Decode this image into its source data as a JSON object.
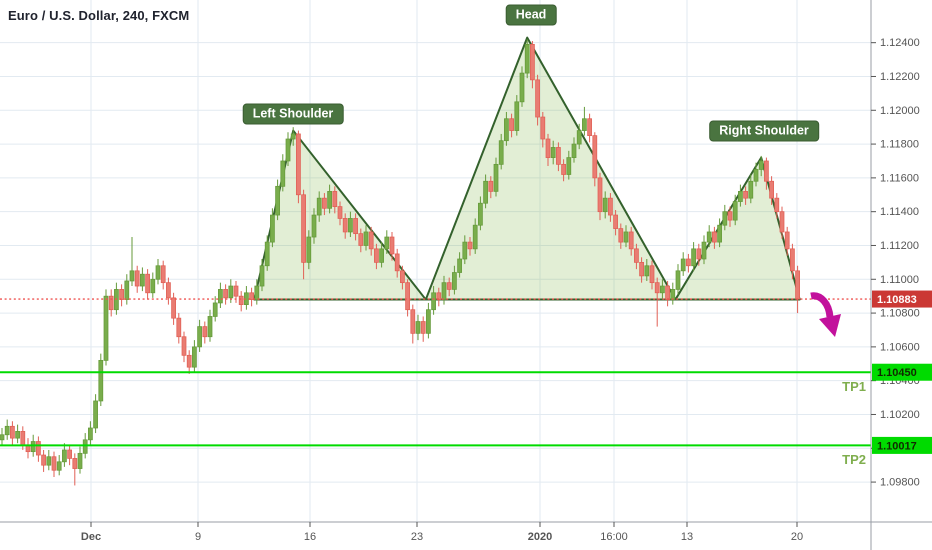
{
  "header": {
    "title": "Euro / U.S. Dollar, 240, FXCM"
  },
  "colors": {
    "background": "#ffffff",
    "grid": "#e2eaf1",
    "axis_border": "#999da6",
    "axis_text": "#555555",
    "candle_up": "#79ad4c",
    "candle_up_border": "#659a3a",
    "candle_down": "#e97c72",
    "candle_down_border": "#e15f55",
    "pattern_stroke": "#33612c",
    "pattern_fill": "rgba(124,179,66,0.22)",
    "pattern_label_bg": "#4a7440",
    "price_line": "#ef5350",
    "price_badge_bg": "#cb3834",
    "price_badge_text": "#ffffff",
    "tp_line": "#00db00",
    "tp_badge_bg": "#00db00",
    "tp_badge_text": "#102a00",
    "tp_label_text": "#7fae4e",
    "arrow": "#c2119c"
  },
  "chart_data": {
    "type": "candlestick",
    "symbol": "Euro / U.S. Dollar",
    "interval": "240",
    "exchange": "FXCM",
    "y_ticks": [
      {
        "v": 1.124,
        "label": "1.12400"
      },
      {
        "v": 1.122,
        "label": "1.12200"
      },
      {
        "v": 1.12,
        "label": "1.12000"
      },
      {
        "v": 1.118,
        "label": "1.11800"
      },
      {
        "v": 1.116,
        "label": "1.11600"
      },
      {
        "v": 1.114,
        "label": "1.11400"
      },
      {
        "v": 1.112,
        "label": "1.11200"
      },
      {
        "v": 1.11,
        "label": "1.11000"
      },
      {
        "v": 1.108,
        "label": "1.10800"
      },
      {
        "v": 1.106,
        "label": "1.10600"
      },
      {
        "v": 1.104,
        "label": "1.10400"
      },
      {
        "v": 1.102,
        "label": "1.10200"
      },
      {
        "v": 1.1,
        "label": "1.10000"
      },
      {
        "v": 1.098,
        "label": "1.09800"
      }
    ],
    "x_ticks": [
      {
        "label": "Dec",
        "x": 91,
        "bold": true
      },
      {
        "label": "9",
        "x": 198,
        "bold": false
      },
      {
        "label": "16",
        "x": 310,
        "bold": false
      },
      {
        "label": "23",
        "x": 417,
        "bold": false
      },
      {
        "label": "2020",
        "x": 540,
        "bold": true
      },
      {
        "label": "16:00",
        "x": 614,
        "bold": false
      },
      {
        "label": "13",
        "x": 687,
        "bold": false
      },
      {
        "label": "20",
        "x": 797,
        "bold": false
      }
    ],
    "price_line": {
      "value": 1.10883,
      "label": "1.10883"
    },
    "tp_lines": [
      {
        "name": "TP1",
        "value": 1.1045,
        "label": "1.10450"
      },
      {
        "name": "TP2",
        "value": 1.10017,
        "label": "1.10017"
      }
    ],
    "pattern": {
      "name": "head-and-shoulders",
      "neckline": 1.1088,
      "labels": [
        {
          "text": "Left Shoulder",
          "x": 293,
          "y": 114
        },
        {
          "text": "Head",
          "x": 531,
          "y": 15
        },
        {
          "text": "Right Shoulder",
          "x": 764,
          "y": 131
        }
      ],
      "shapes": [
        {
          "name": "left-shoulder",
          "from_i": 48.5,
          "peak_i": 56,
          "peak_p": 1.1188,
          "to_i": 81.5
        },
        {
          "name": "head",
          "from_i": 81.5,
          "peak_i": 101,
          "peak_p": 1.1243,
          "to_i": 129.5
        },
        {
          "name": "right-shoulder",
          "from_i": 129.5,
          "peak_i": 146,
          "peak_p": 1.1172,
          "to_i": 153.4
        }
      ]
    },
    "arrow_annotation": {
      "from_x": 811,
      "from_y": 296,
      "tip_x": 835,
      "tip_y": 337
    },
    "candles": [
      [
        1.1005,
        1.1012,
        1.1002,
        1.1008
      ],
      [
        1.1008,
        1.1017,
        1.1005,
        1.1013
      ],
      [
        1.1013,
        1.1016,
        1.1002,
        1.1006
      ],
      [
        1.1006,
        1.1014,
        1.1003,
        1.101
      ],
      [
        1.101,
        1.1013,
        1.0999,
        1.1002
      ],
      [
        1.1002,
        1.1006,
        1.0994,
        1.0998
      ],
      [
        1.0998,
        1.1008,
        1.0995,
        1.1004
      ],
      [
        1.1004,
        1.1007,
        1.0992,
        1.0996
      ],
      [
        1.0996,
        1.0999,
        1.0986,
        1.099
      ],
      [
        1.099,
        1.0999,
        1.0987,
        1.0995
      ],
      [
        1.0995,
        1.0998,
        1.0983,
        1.0987
      ],
      [
        1.0987,
        1.0996,
        1.0984,
        1.0992
      ],
      [
        1.0992,
        1.1003,
        1.0989,
        1.0999
      ],
      [
        1.0999,
        1.1002,
        1.099,
        1.0994
      ],
      [
        1.0994,
        1.0997,
        1.0978,
        1.0988
      ],
      [
        1.0988,
        1.1001,
        1.0985,
        1.0997
      ],
      [
        1.0997,
        1.1009,
        1.0994,
        1.1005
      ],
      [
        1.1005,
        1.1016,
        1.1002,
        1.1012
      ],
      [
        1.1012,
        1.1032,
        1.1009,
        1.1028
      ],
      [
        1.1028,
        1.1056,
        1.1025,
        1.1052
      ],
      [
        1.1052,
        1.1094,
        1.1049,
        1.109
      ],
      [
        1.109,
        1.1094,
        1.1078,
        1.1082
      ],
      [
        1.1082,
        1.1098,
        1.1079,
        1.1094
      ],
      [
        1.1094,
        1.1097,
        1.1084,
        1.1088
      ],
      [
        1.1088,
        1.1103,
        1.1085,
        1.1099
      ],
      [
        1.1099,
        1.1125,
        1.1096,
        1.1105
      ],
      [
        1.1105,
        1.1108,
        1.1092,
        1.1096
      ],
      [
        1.1096,
        1.1107,
        1.1093,
        1.1103
      ],
      [
        1.1103,
        1.1106,
        1.1088,
        1.1092
      ],
      [
        1.1092,
        1.1104,
        1.1089,
        1.11
      ],
      [
        1.11,
        1.1112,
        1.1097,
        1.1108
      ],
      [
        1.1108,
        1.1111,
        1.1094,
        1.1098
      ],
      [
        1.1098,
        1.1101,
        1.1085,
        1.1089
      ],
      [
        1.1089,
        1.1092,
        1.1073,
        1.1077
      ],
      [
        1.1077,
        1.108,
        1.1062,
        1.1066
      ],
      [
        1.1066,
        1.1069,
        1.1051,
        1.1055
      ],
      [
        1.1055,
        1.1058,
        1.1044,
        1.1048
      ],
      [
        1.1048,
        1.1064,
        1.1045,
        1.106
      ],
      [
        1.106,
        1.1076,
        1.1057,
        1.1072
      ],
      [
        1.1072,
        1.1075,
        1.1062,
        1.1066
      ],
      [
        1.1066,
        1.1082,
        1.1063,
        1.1078
      ],
      [
        1.1078,
        1.109,
        1.1075,
        1.1086
      ],
      [
        1.1086,
        1.1098,
        1.1083,
        1.1094
      ],
      [
        1.1094,
        1.1097,
        1.1085,
        1.1089
      ],
      [
        1.1089,
        1.11,
        1.1086,
        1.1096
      ],
      [
        1.1096,
        1.1099,
        1.1086,
        1.109
      ],
      [
        1.109,
        1.1093,
        1.1081,
        1.1085
      ],
      [
        1.1085,
        1.1096,
        1.1082,
        1.1092
      ],
      [
        1.1092,
        1.1095,
        1.1084,
        1.1088
      ],
      [
        1.1088,
        1.11,
        1.1085,
        1.1096
      ],
      [
        1.1096,
        1.1112,
        1.1093,
        1.1108
      ],
      [
        1.1108,
        1.1126,
        1.1105,
        1.1122
      ],
      [
        1.1122,
        1.1142,
        1.1119,
        1.1138
      ],
      [
        1.1138,
        1.1159,
        1.1135,
        1.1155
      ],
      [
        1.1155,
        1.1174,
        1.1152,
        1.117
      ],
      [
        1.117,
        1.1187,
        1.1167,
        1.1183
      ],
      [
        1.1183,
        1.119,
        1.1179,
        1.1186
      ],
      [
        1.1186,
        1.1188,
        1.1145,
        1.115
      ],
      [
        1.115,
        1.1153,
        1.11,
        1.111
      ],
      [
        1.111,
        1.1129,
        1.1106,
        1.1125
      ],
      [
        1.1125,
        1.1142,
        1.1121,
        1.1138
      ],
      [
        1.1138,
        1.1152,
        1.1134,
        1.1148
      ],
      [
        1.1148,
        1.1151,
        1.1138,
        1.1142
      ],
      [
        1.1142,
        1.1156,
        1.1139,
        1.1152
      ],
      [
        1.1152,
        1.1155,
        1.1139,
        1.1143
      ],
      [
        1.1143,
        1.1146,
        1.1132,
        1.1136
      ],
      [
        1.1136,
        1.1139,
        1.1124,
        1.1128
      ],
      [
        1.1128,
        1.114,
        1.1125,
        1.1136
      ],
      [
        1.1136,
        1.1139,
        1.1123,
        1.1127
      ],
      [
        1.1127,
        1.113,
        1.1116,
        1.112
      ],
      [
        1.112,
        1.1132,
        1.1117,
        1.1128
      ],
      [
        1.1128,
        1.1131,
        1.1114,
        1.1118
      ],
      [
        1.1118,
        1.1121,
        1.1106,
        1.111
      ],
      [
        1.111,
        1.1122,
        1.1107,
        1.1118
      ],
      [
        1.1118,
        1.1129,
        1.1115,
        1.1125
      ],
      [
        1.1125,
        1.1128,
        1.1111,
        1.1115
      ],
      [
        1.1115,
        1.1118,
        1.1101,
        1.1105
      ],
      [
        1.1105,
        1.1108,
        1.1094,
        1.1098
      ],
      [
        1.1098,
        1.11,
        1.1078,
        1.1082
      ],
      [
        1.1082,
        1.1085,
        1.1062,
        1.1068
      ],
      [
        1.1068,
        1.1079,
        1.1064,
        1.1075
      ],
      [
        1.1075,
        1.1078,
        1.1063,
        1.1068
      ],
      [
        1.1068,
        1.1086,
        1.1065,
        1.1082
      ],
      [
        1.1082,
        1.1096,
        1.1079,
        1.1092
      ],
      [
        1.1092,
        1.1095,
        1.1084,
        1.1088
      ],
      [
        1.1088,
        1.1102,
        1.1085,
        1.1098
      ],
      [
        1.1098,
        1.1101,
        1.109,
        1.1094
      ],
      [
        1.1094,
        1.1108,
        1.1091,
        1.1104
      ],
      [
        1.1104,
        1.1116,
        1.1101,
        1.1112
      ],
      [
        1.1112,
        1.1126,
        1.1109,
        1.1122
      ],
      [
        1.1122,
        1.1125,
        1.1114,
        1.1118
      ],
      [
        1.1118,
        1.1136,
        1.1115,
        1.1132
      ],
      [
        1.1132,
        1.1149,
        1.1129,
        1.1145
      ],
      [
        1.1145,
        1.1162,
        1.1142,
        1.1158
      ],
      [
        1.1158,
        1.1161,
        1.1148,
        1.1152
      ],
      [
        1.1152,
        1.1172,
        1.1149,
        1.1168
      ],
      [
        1.1168,
        1.1186,
        1.1165,
        1.1182
      ],
      [
        1.1182,
        1.1199,
        1.1179,
        1.1195
      ],
      [
        1.1195,
        1.1198,
        1.1184,
        1.1188
      ],
      [
        1.1188,
        1.1209,
        1.1185,
        1.1205
      ],
      [
        1.1205,
        1.1226,
        1.1202,
        1.1222
      ],
      [
        1.1222,
        1.1242,
        1.1219,
        1.1239
      ],
      [
        1.1239,
        1.1241,
        1.1213,
        1.1218
      ],
      [
        1.1218,
        1.1221,
        1.1191,
        1.1196
      ],
      [
        1.1196,
        1.1199,
        1.1178,
        1.1183
      ],
      [
        1.1183,
        1.1186,
        1.1167,
        1.1172
      ],
      [
        1.1172,
        1.1182,
        1.1168,
        1.1178
      ],
      [
        1.1178,
        1.1181,
        1.1164,
        1.1168
      ],
      [
        1.1168,
        1.1171,
        1.1158,
        1.1162
      ],
      [
        1.1162,
        1.1176,
        1.1159,
        1.1172
      ],
      [
        1.1172,
        1.1184,
        1.1169,
        1.118
      ],
      [
        1.118,
        1.1192,
        1.1177,
        1.1188
      ],
      [
        1.1188,
        1.1202,
        1.1185,
        1.1195
      ],
      [
        1.1195,
        1.1198,
        1.1181,
        1.1185
      ],
      [
        1.1185,
        1.1187,
        1.1155,
        1.116
      ],
      [
        1.116,
        1.1163,
        1.1135,
        1.114
      ],
      [
        1.114,
        1.1152,
        1.1136,
        1.1148
      ],
      [
        1.1148,
        1.1151,
        1.1134,
        1.1138
      ],
      [
        1.1138,
        1.1141,
        1.1126,
        1.113
      ],
      [
        1.113,
        1.1133,
        1.1118,
        1.1122
      ],
      [
        1.1122,
        1.1132,
        1.1119,
        1.1128
      ],
      [
        1.1128,
        1.1131,
        1.1114,
        1.1118
      ],
      [
        1.1118,
        1.1121,
        1.1106,
        1.111
      ],
      [
        1.111,
        1.1113,
        1.1098,
        1.1102
      ],
      [
        1.1102,
        1.1112,
        1.1099,
        1.1108
      ],
      [
        1.1108,
        1.1111,
        1.1094,
        1.1098
      ],
      [
        1.1098,
        1.1101,
        1.1072,
        1.1092
      ],
      [
        1.1092,
        1.11,
        1.1088,
        1.1096
      ],
      [
        1.1096,
        1.1099,
        1.1084,
        1.1088
      ],
      [
        1.1088,
        1.1098,
        1.1085,
        1.1094
      ],
      [
        1.1094,
        1.1109,
        1.1091,
        1.1105
      ],
      [
        1.1105,
        1.1116,
        1.1102,
        1.1112
      ],
      [
        1.1112,
        1.1115,
        1.1104,
        1.1108
      ],
      [
        1.1108,
        1.1122,
        1.1105,
        1.1118
      ],
      [
        1.1118,
        1.1121,
        1.1108,
        1.1112
      ],
      [
        1.1112,
        1.1126,
        1.1109,
        1.1122
      ],
      [
        1.1122,
        1.1132,
        1.1119,
        1.1128
      ],
      [
        1.1128,
        1.1131,
        1.1118,
        1.1122
      ],
      [
        1.1122,
        1.1136,
        1.1119,
        1.1132
      ],
      [
        1.1132,
        1.1144,
        1.1129,
        1.114
      ],
      [
        1.114,
        1.1143,
        1.1131,
        1.1135
      ],
      [
        1.1135,
        1.115,
        1.1132,
        1.1146
      ],
      [
        1.1146,
        1.1156,
        1.1143,
        1.1152
      ],
      [
        1.1152,
        1.1155,
        1.1144,
        1.1148
      ],
      [
        1.1148,
        1.1162,
        1.1145,
        1.1158
      ],
      [
        1.1158,
        1.1169,
        1.1155,
        1.1165
      ],
      [
        1.1165,
        1.1173,
        1.1161,
        1.117
      ],
      [
        1.117,
        1.1172,
        1.1153,
        1.1158
      ],
      [
        1.1158,
        1.1161,
        1.1144,
        1.1148
      ],
      [
        1.1148,
        1.1151,
        1.1136,
        1.114
      ],
      [
        1.114,
        1.1143,
        1.1124,
        1.1128
      ],
      [
        1.1128,
        1.1131,
        1.1114,
        1.1118
      ],
      [
        1.1118,
        1.1121,
        1.11,
        1.1105
      ],
      [
        1.1105,
        1.1108,
        1.108,
        1.10883
      ]
    ]
  }
}
